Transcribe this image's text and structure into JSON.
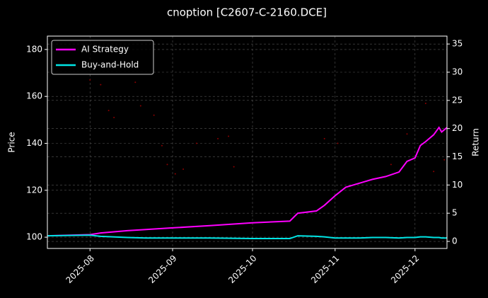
{
  "chart_data": {
    "type": "line",
    "title": "cnoption [C2607-C-2160.DCE]",
    "ylabel": "Price",
    "y2label": "Return",
    "xlim": [
      "2025-07-16",
      "2025-12-13"
    ],
    "xticks": [
      {
        "value": "2025-08-01",
        "label": "2025-08"
      },
      {
        "value": "2025-09-01",
        "label": "2025-09"
      },
      {
        "value": "2025-10-01",
        "label": "2025-10"
      },
      {
        "value": "2025-11-01",
        "label": "2025-11"
      },
      {
        "value": "2025-12-01",
        "label": "2025-12"
      }
    ],
    "ylim": [
      95.2,
      185.7
    ],
    "yticks": [
      100,
      120,
      140,
      160,
      180
    ],
    "y2lim": [
      -1.25,
      36.4
    ],
    "y2ticks": [
      0,
      5,
      10,
      15,
      20,
      25,
      30,
      35
    ],
    "grid": true,
    "legend": "upper left",
    "price_points": {
      "color": "#8b0000",
      "x": [
        "2025-08-01",
        "2025-08-05",
        "2025-08-08",
        "2025-08-10",
        "2025-08-18",
        "2025-08-20",
        "2025-08-25",
        "2025-08-28",
        "2025-08-30",
        "2025-09-02",
        "2025-09-05",
        "2025-09-10",
        "2025-09-18",
        "2025-09-22",
        "2025-09-24",
        "2025-10-28",
        "2025-11-02",
        "2025-11-22",
        "2025-11-28",
        "2025-12-05",
        "2025-12-08",
        "2025-12-12"
      ],
      "values": [
        167,
        165,
        154,
        151,
        166,
        156,
        152,
        139,
        131,
        127,
        129,
        140,
        142,
        143,
        130,
        142,
        140,
        131,
        144,
        157,
        128,
        133
      ]
    },
    "x": [
      "2025-07-16",
      "2025-08-01",
      "2025-08-05",
      "2025-08-15",
      "2025-08-22",
      "2025-09-01",
      "2025-09-15",
      "2025-10-01",
      "2025-10-15",
      "2025-10-18",
      "2025-10-25",
      "2025-10-28",
      "2025-11-01",
      "2025-11-05",
      "2025-11-10",
      "2025-11-15",
      "2025-11-20",
      "2025-11-25",
      "2025-11-28",
      "2025-12-01",
      "2025-12-03",
      "2025-12-05",
      "2025-12-08",
      "2025-12-10",
      "2025-12-11",
      "2025-12-13"
    ],
    "series": [
      {
        "name": "AI Strategy",
        "color": "#ff00ff",
        "axis": "y2",
        "values": [
          1.0,
          1.2,
          1.5,
          1.9,
          2.1,
          2.4,
          2.8,
          3.3,
          3.6,
          5.0,
          5.4,
          6.4,
          8.1,
          9.6,
          10.3,
          11.0,
          11.5,
          12.3,
          14.2,
          14.8,
          17.0,
          17.7,
          18.9,
          20.2,
          19.4,
          20.2
        ]
      },
      {
        "name": "Buy-and-Hold",
        "color": "#00e5e5",
        "axis": "y2",
        "values": [
          1.0,
          1.1,
          0.9,
          0.7,
          0.6,
          0.6,
          0.6,
          0.5,
          0.5,
          1.0,
          0.9,
          0.8,
          0.6,
          0.6,
          0.6,
          0.7,
          0.7,
          0.6,
          0.7,
          0.7,
          0.8,
          0.8,
          0.7,
          0.7,
          0.6,
          0.6
        ]
      }
    ]
  }
}
